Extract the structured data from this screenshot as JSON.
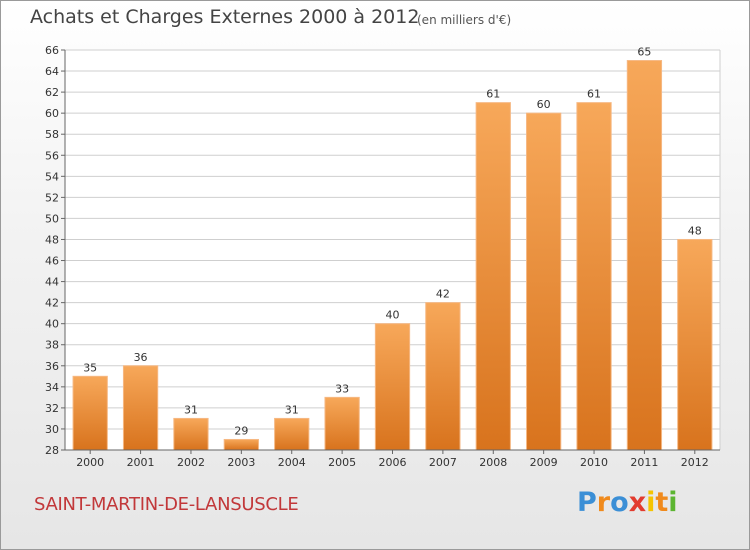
{
  "header": {
    "title": "Achats et Charges Externes 2000 à 2012",
    "subtitle": "(en milliers d'€)"
  },
  "footer": {
    "commune": "SAINT-MARTIN-DE-LANSUSCLE",
    "logo_text": "Proxiti",
    "logo_letters": [
      {
        "char": "P",
        "color": "#3b8fd6"
      },
      {
        "char": "r",
        "color": "#f08a1c"
      },
      {
        "char": "o",
        "color": "#3b8fd6"
      },
      {
        "char": "x",
        "color": "#e23b2e"
      },
      {
        "char": "i",
        "color": "#f5c400"
      },
      {
        "char": "t",
        "color": "#f08a1c"
      },
      {
        "char": "i",
        "color": "#5cb531"
      }
    ]
  },
  "chart_data": {
    "type": "bar",
    "title": "Achats et Charges Externes 2000 à 2012",
    "subtitle": "(en milliers d'€)",
    "categories": [
      "2000",
      "2001",
      "2002",
      "2003",
      "2004",
      "2005",
      "2006",
      "2007",
      "2008",
      "2009",
      "2010",
      "2011",
      "2012"
    ],
    "values": [
      35,
      36,
      31,
      29,
      31,
      33,
      40,
      42,
      61,
      60,
      61,
      65,
      48
    ],
    "ylim": [
      28,
      66
    ],
    "yticks": [
      28,
      30,
      32,
      34,
      36,
      38,
      40,
      42,
      44,
      46,
      48,
      50,
      52,
      54,
      56,
      58,
      60,
      62,
      64,
      66
    ],
    "grid": true,
    "bar_color_top": "#f7a85a",
    "bar_color_bottom": "#d8731d",
    "grid_color": "#cfcfcf"
  }
}
